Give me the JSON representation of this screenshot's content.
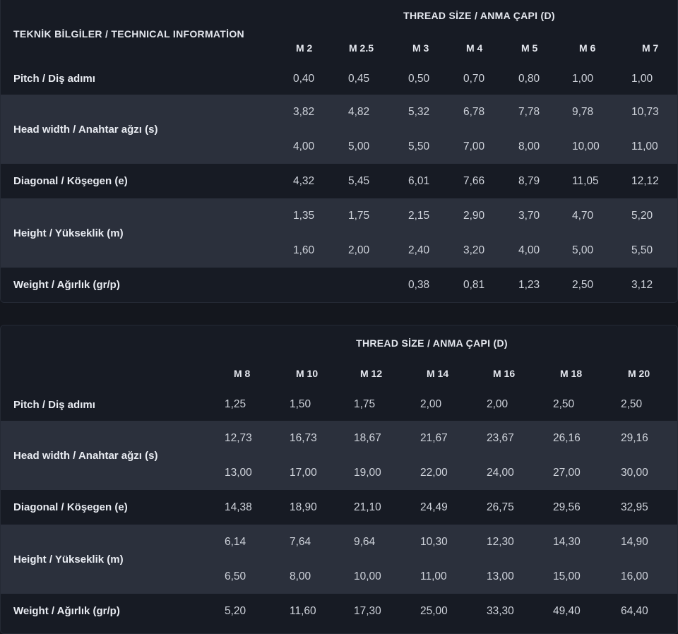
{
  "technical_title": "TEKNİK BİLGİLER / TECHNICAL INFORMATİON",
  "thread_title": "THREAD SİZE / ANMA ÇAPI (D)",
  "row_labels": {
    "pitch": "Pitch / Diş adımı",
    "head_width": "Head width / Anahtar ağzı (s)",
    "diagonal": "Diagonal / Köşegen (e)",
    "height": "Height / Yükseklik (m)",
    "weight": "Weight / Ağırlık (gr/p)"
  },
  "table1": {
    "sizes": [
      "M 2",
      "M 2.5",
      "M 3",
      "M 4",
      "M 5",
      "M 6",
      "M 7"
    ],
    "pitch": [
      "0,40",
      "0,45",
      "0,50",
      "0,70",
      "0,80",
      "1,00",
      "1,00"
    ],
    "head_width_min": [
      "3,82",
      "4,82",
      "5,32",
      "6,78",
      "7,78",
      "9,78",
      "10,73"
    ],
    "head_width_max": [
      "4,00",
      "5,00",
      "5,50",
      "7,00",
      "8,00",
      "10,00",
      "11,00"
    ],
    "diagonal": [
      "4,32",
      "5,45",
      "6,01",
      "7,66",
      "8,79",
      "11,05",
      "12,12"
    ],
    "height_min": [
      "1,35",
      "1,75",
      "2,15",
      "2,90",
      "3,70",
      "4,70",
      "5,20"
    ],
    "height_max": [
      "1,60",
      "2,00",
      "2,40",
      "3,20",
      "4,00",
      "5,00",
      "5,50"
    ],
    "weight": [
      "",
      "",
      "0,38",
      "0,81",
      "1,23",
      "2,50",
      "3,12"
    ]
  },
  "table2": {
    "sizes": [
      "M 8",
      "M 10",
      "M 12",
      "M 14",
      "M 16",
      "M 18",
      "M 20"
    ],
    "pitch": [
      "1,25",
      "1,50",
      "1,75",
      "2,00",
      "2,00",
      "2,50",
      "2,50"
    ],
    "head_width_min": [
      "12,73",
      "16,73",
      "18,67",
      "21,67",
      "23,67",
      "26,16",
      "29,16"
    ],
    "head_width_max": [
      "13,00",
      "17,00",
      "19,00",
      "22,00",
      "24,00",
      "27,00",
      "30,00"
    ],
    "diagonal": [
      "14,38",
      "18,90",
      "21,10",
      "24,49",
      "26,75",
      "29,56",
      "32,95"
    ],
    "height_min": [
      "6,14",
      "7,64",
      "9,64",
      "10,30",
      "12,30",
      "14,30",
      "14,90"
    ],
    "height_max": [
      "6,50",
      "8,00",
      "10,00",
      "11,00",
      "13,00",
      "15,00",
      "16,00"
    ],
    "weight": [
      "5,20",
      "11,60",
      "17,30",
      "25,00",
      "33,30",
      "49,40",
      "64,40"
    ]
  }
}
